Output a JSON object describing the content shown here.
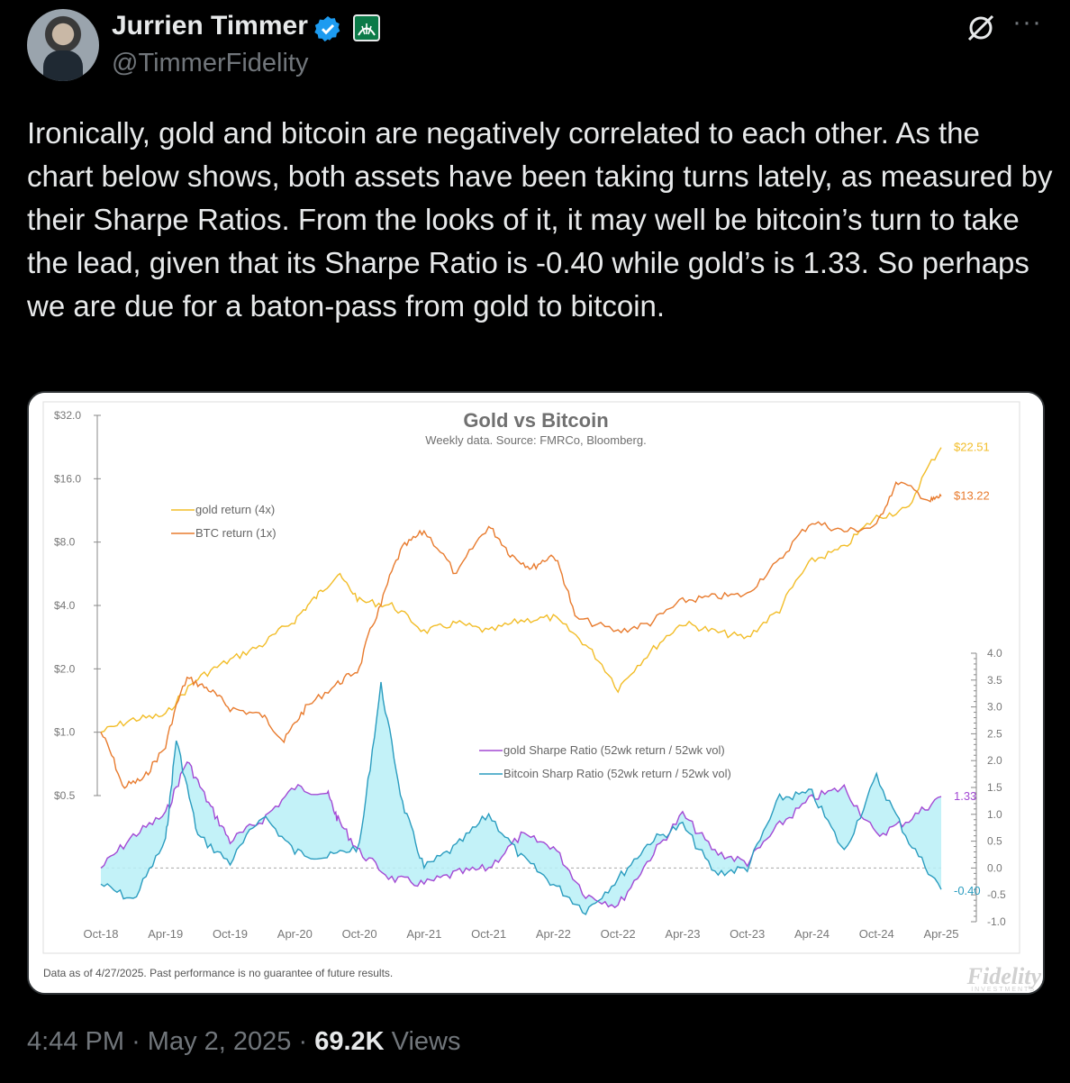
{
  "tweet": {
    "author_name": "Jurrien Timmer",
    "handle": "@TimmerFidelity",
    "text": "Ironically, gold and bitcoin are negatively correlated to each other. As the chart below shows, both assets have been taking turns lately, as measured by their Sharpe Ratios. From the looks of it, it may well be bitcoin’s turn to take the lead, given that its Sharpe Ratio is -0.40 while gold’s is 1.33. So perhaps we are due for a baton-pass from gold to bitcoin.",
    "time": "4:44 PM",
    "date": "May 2, 2025",
    "views_count": "69.2K",
    "views_label": "Views",
    "separator": "·",
    "more_label": "···"
  },
  "chart_data": {
    "type": "line",
    "title": "Gold vs Bitcoin",
    "subtitle": "Weekly data.  Source: FMRCo, Bloomberg.",
    "footnote": "Data as of 4/27/2025. Past performance is no guarantee of future results.",
    "logo_text": "Fidelity",
    "logo_subtext": "INVESTMENTS",
    "x_ticks": [
      "Oct-18",
      "Apr-19",
      "Oct-19",
      "Apr-20",
      "Oct-20",
      "Apr-21",
      "Oct-21",
      "Apr-22",
      "Oct-22",
      "Apr-23",
      "Oct-23",
      "Apr-24",
      "Oct-24",
      "Apr-25"
    ],
    "left_axis": {
      "scale": "log2",
      "ticks": [
        "$32.0",
        "$16.0",
        "$8.0",
        "$4.0",
        "$2.0",
        "$1.0",
        "$0.5"
      ],
      "values": [
        32,
        16,
        8,
        4,
        2,
        1,
        0.5
      ]
    },
    "right_axis": {
      "ticks": [
        "4.0",
        "3.5",
        "3.0",
        "2.5",
        "2.0",
        "1.5",
        "1.0",
        "0.5",
        "0.0",
        "-0.5",
        "-1.0"
      ],
      "values": [
        4,
        3.5,
        3,
        2.5,
        2,
        1.5,
        1,
        0.5,
        0,
        -0.5,
        -1
      ],
      "range": [
        -1,
        4
      ]
    },
    "legend_top": [
      "gold return (4x)",
      "BTC return (1x)"
    ],
    "legend_bottom": [
      "gold Sharpe Ratio (52wk return / 52wk vol)",
      "Bitcoin Sharp Ratio (52wk return / 52wk vol)"
    ],
    "colors": {
      "gold": "#f2bd28",
      "btc": "#e87b2e",
      "gold_sharpe": "#a349d4",
      "btc_sharpe": "#2a9cbf",
      "fill": "#b8f0f7",
      "axis": "#8a8a8a"
    },
    "series": [
      {
        "name": "gold return (4x)",
        "axis": "left",
        "x": [
          "Oct-18",
          "Jan-19",
          "Apr-19",
          "Jul-19",
          "Oct-19",
          "Jan-20",
          "Apr-20",
          "Jun-20",
          "Aug-20",
          "Oct-20",
          "Jan-21",
          "Apr-21",
          "Jul-21",
          "Oct-21",
          "Jan-22",
          "Apr-22",
          "Jul-22",
          "Oct-22",
          "Jan-23",
          "Apr-23",
          "Jul-23",
          "Oct-23",
          "Jan-24",
          "Apr-24",
          "Jul-24",
          "Oct-24",
          "Jan-25",
          "Apr-25"
        ],
        "y": [
          1.0,
          1.15,
          1.2,
          1.8,
          2.2,
          2.6,
          3.4,
          4.4,
          5.6,
          4.2,
          4.0,
          3.0,
          3.3,
          3.0,
          3.4,
          3.5,
          2.6,
          1.6,
          2.4,
          3.3,
          3.0,
          2.8,
          3.8,
          6.5,
          7.5,
          10.5,
          11.5,
          22.51
        ],
        "end_label": "$22.51"
      },
      {
        "name": "BTC return (1x)",
        "axis": "left",
        "x": [
          "Oct-18",
          "Dec-18",
          "Feb-19",
          "Apr-19",
          "Jun-19",
          "Aug-19",
          "Oct-19",
          "Jan-20",
          "Mar-20",
          "May-20",
          "Aug-20",
          "Oct-20",
          "Dec-20",
          "Feb-21",
          "Apr-21",
          "Jul-21",
          "Oct-21",
          "Dec-21",
          "Feb-22",
          "Apr-22",
          "Jun-22",
          "Oct-22",
          "Jan-23",
          "Apr-23",
          "Jul-23",
          "Oct-23",
          "Jan-24",
          "Apr-24",
          "Jul-24",
          "Oct-24",
          "Dec-24",
          "Mar-25",
          "Apr-25"
        ],
        "y": [
          1.0,
          0.55,
          0.6,
          0.85,
          1.8,
          1.6,
          1.3,
          1.2,
          0.9,
          1.3,
          1.7,
          2.0,
          4.0,
          7.5,
          9.0,
          5.5,
          9.5,
          7.0,
          6.0,
          7.0,
          3.5,
          3.0,
          3.3,
          4.2,
          4.4,
          4.5,
          6.5,
          10.0,
          9.0,
          9.5,
          15.5,
          12.5,
          13.22
        ],
        "end_label": "$13.22"
      },
      {
        "name": "gold Sharpe Ratio (52wk return / 52wk vol)",
        "axis": "right",
        "x": [
          "Oct-18",
          "Jan-19",
          "Apr-19",
          "Jun-19",
          "Aug-19",
          "Oct-19",
          "Jan-20",
          "Apr-20",
          "Jul-20",
          "Aug-20",
          "Oct-20",
          "Jan-21",
          "Apr-21",
          "Jul-21",
          "Oct-21",
          "Jan-22",
          "Apr-22",
          "Jul-22",
          "Oct-22",
          "Jan-23",
          "Apr-23",
          "Jul-23",
          "Oct-23",
          "Jan-24",
          "Apr-24",
          "Jul-24",
          "Oct-24",
          "Jan-25",
          "Apr-25"
        ],
        "y": [
          0.0,
          0.6,
          1.0,
          2.0,
          1.2,
          0.5,
          0.9,
          1.5,
          1.4,
          0.9,
          0.3,
          -0.2,
          -0.3,
          -0.1,
          0.0,
          0.6,
          0.4,
          -0.5,
          -0.7,
          0.2,
          1.0,
          0.3,
          0.1,
          0.8,
          1.3,
          1.5,
          0.6,
          0.9,
          1.33
        ],
        "end_label": "1.33"
      },
      {
        "name": "Bitcoin Sharp Ratio (52wk return / 52wk vol)",
        "axis": "right",
        "x": [
          "Oct-18",
          "Jan-19",
          "Apr-19",
          "May-19",
          "Jul-19",
          "Oct-19",
          "Jan-20",
          "Apr-20",
          "Jul-20",
          "Oct-20",
          "Dec-20",
          "Feb-21",
          "Apr-21",
          "Jul-21",
          "Oct-21",
          "Jan-22",
          "Apr-22",
          "Jul-22",
          "Oct-22",
          "Jan-23",
          "Apr-23",
          "Jul-23",
          "Oct-23",
          "Jan-24",
          "Apr-24",
          "Jul-24",
          "Oct-24",
          "Jan-25",
          "Apr-25"
        ],
        "y": [
          -0.3,
          -0.6,
          0.5,
          2.4,
          0.6,
          0.1,
          1.0,
          0.3,
          0.2,
          0.4,
          3.4,
          1.2,
          0.0,
          0.4,
          1.0,
          0.2,
          -0.3,
          -0.8,
          -0.2,
          0.5,
          0.8,
          -0.1,
          0.0,
          1.3,
          1.4,
          0.3,
          1.7,
          0.5,
          -0.4
        ],
        "end_label": "-0.40"
      }
    ]
  }
}
